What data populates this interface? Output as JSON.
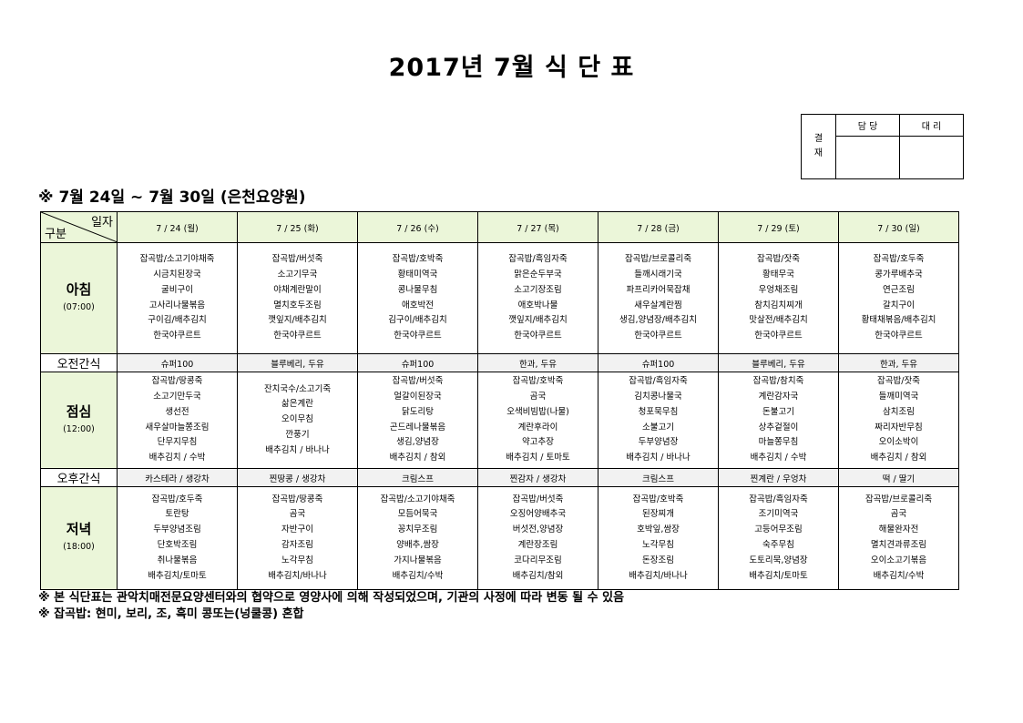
{
  "title": "2017년 7월 식 단 표",
  "approval": {
    "label": "결\n재",
    "label_line1": "결",
    "label_line2": "재",
    "columns": [
      "담 당",
      "대 리"
    ]
  },
  "subtitle": "※ 7월 24일 ~ 7월 30일 (은천요양원)",
  "table": {
    "corner_top": "일자",
    "corner_bottom": "구분",
    "days": [
      "7 / 24 (월)",
      "7 / 25 (화)",
      "7 / 26 (수)",
      "7 / 27 (목)",
      "7 / 28 (금)",
      "7 / 29 (토)",
      "7 / 30 (일)"
    ],
    "breakfast": {
      "label": "아침",
      "time": "(07:00)",
      "menus": [
        [
          "잡곡밥/소고기야채죽",
          "시금치된장국",
          "굴비구이",
          "고사리나물볶음",
          "구이김/배추김치",
          "한국야쿠르트"
        ],
        [
          "잡곡밥/버섯죽",
          "소고기무국",
          "야채계란말이",
          "멸치호두조림",
          "깻잎지/배추김치",
          "한국야쿠르트"
        ],
        [
          "잡곡밥/호박죽",
          "황태미역국",
          "콩나물무침",
          "애호박전",
          "김구이/배추김치",
          "한국야쿠르트"
        ],
        [
          "잡곡밥/흑임자죽",
          "맑은순두부국",
          "소고기장조림",
          "애호박나물",
          "깻잎지/배추김치",
          "한국야쿠르트"
        ],
        [
          "잡곡밥/브로콜리죽",
          "들깨시래기국",
          "파프리카어묵잡채",
          "새우살계란찜",
          "생김,양념장/배추김치",
          "한국야쿠르트"
        ],
        [
          "잡곡밥/잣죽",
          "황태무국",
          "우엉채조림",
          "참치김치찌개",
          "맛살전/배추김치",
          "한국야쿠르트"
        ],
        [
          "잡곡밥/호두죽",
          "콩가루배추국",
          "연근조림",
          "갈치구이",
          "황태채볶음/배추김치",
          "한국야쿠르트"
        ]
      ]
    },
    "morning_snack": {
      "label": "오전간식",
      "items": [
        "슈퍼100",
        "블루베리, 두유",
        "슈퍼100",
        "한과, 두유",
        "슈퍼100",
        "블루베리, 두유",
        "한과, 두유"
      ]
    },
    "lunch": {
      "label": "점심",
      "time": "(12:00)",
      "menus": [
        [
          "잡곡밥/땅콩죽",
          "소고기만두국",
          "생선전",
          "새우살마늘쫑조림",
          "단무지무침",
          "배추김치 / 수박"
        ],
        [
          "잔치국수/소고기죽",
          "삶은계란",
          "오이무침",
          "깐풍기",
          "배추김치 / 바나나"
        ],
        [
          "잡곡밥/버섯죽",
          "얼갈이된장국",
          "닭도리탕",
          "곤드레나물볶음",
          "생김,양념장",
          "배추김치 / 참외"
        ],
        [
          "잡곡밥/호박죽",
          "곰국",
          "오색비빔밥(나물)",
          "계란후라이",
          "약고추장",
          "배추김치 / 토마토"
        ],
        [
          "잡곡밥/흑임자죽",
          "김치콩나물국",
          "청포묵무침",
          "소불고기",
          "두부양념장",
          "배추김치 / 바나나"
        ],
        [
          "잡곡밥/참치죽",
          "계란감자국",
          "돈불고기",
          "상추겉절이",
          "마늘쫑무침",
          "배추김치 / 수박"
        ],
        [
          "잡곡밥/잣죽",
          "들깨미역국",
          "삼치조림",
          "짜리자반무침",
          "오이소박이",
          "배추김치 / 참외"
        ]
      ]
    },
    "afternoon_snack": {
      "label": "오후간식",
      "items": [
        "카스테라 / 생강차",
        "찐땅콩 / 생강차",
        "크림스프",
        "찐감자 / 생강차",
        "크림스프",
        "찐계란 / 우엉차",
        "떡 / 딸기"
      ]
    },
    "dinner": {
      "label": "저녁",
      "time": "(18:00)",
      "menus": [
        [
          "잡곡밥/호두죽",
          "토란탕",
          "두부양념조림",
          "단호박조림",
          "취나물볶음",
          "배추김치/토마토"
        ],
        [
          "잡곡밥/땅콩죽",
          "곰국",
          "자반구이",
          "감자조림",
          "노각무침",
          "배추김치/바나나"
        ],
        [
          "잡곡밥/소고기야채죽",
          "모듬어묵국",
          "꽁치무조림",
          "양배추,쌈장",
          "가지나물볶음",
          "배추김치/수박"
        ],
        [
          "잡곡밥/버섯죽",
          "오징어양배추국",
          "버섯전,양념장",
          "계란장조림",
          "코다리무조림",
          "배추김치/참외"
        ],
        [
          "잡곡밥/호박죽",
          "된장찌개",
          "호박잎,쌈장",
          "노각무침",
          "돈장조림",
          "배추김치/바나나"
        ],
        [
          "잡곡밥/흑임자죽",
          "조기미역국",
          "고등어무조림",
          "숙주무침",
          "도토리묵,양념장",
          "배추김치/토마토"
        ],
        [
          "잡곡밥/브로콜리죽",
          "곰국",
          "해물완자전",
          "멸치견과류조림",
          "오이소고기볶음",
          "배추김치/수박"
        ]
      ]
    }
  },
  "notes": [
    "※ 본 식단표는 관악치매전문요양센터와의 협약으로 영양사에 의해 작성되었으며, 기관의 사정에 따라 변동 될 수 있음",
    "※ 잡곡밥: 현미, 보리, 조, 흑미 콩또는(넝쿨콩) 혼합"
  ],
  "colors": {
    "header_bg": "#ebf6d9",
    "snack_bg": "#f2f2f2"
  }
}
